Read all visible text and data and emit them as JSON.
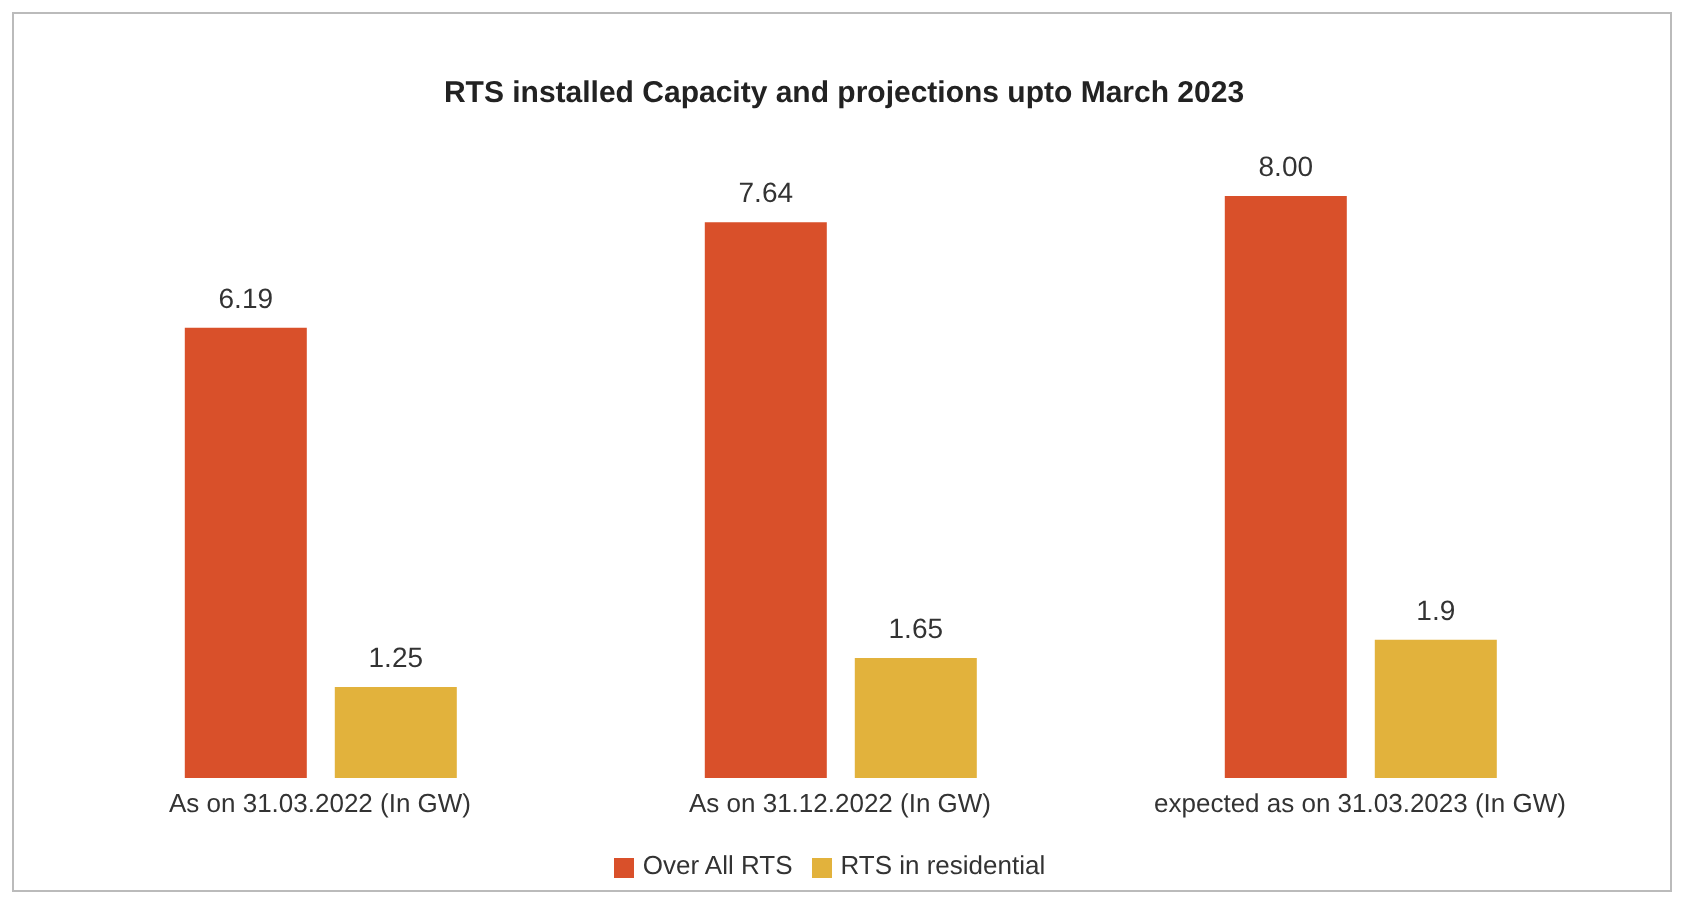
{
  "chart_data": {
    "type": "bar",
    "title": "RTS installed Capacity and projections upto March 2023",
    "categories": [
      "As on 31.03.2022 (In GW)",
      "As on 31.12.2022 (In GW)",
      "expected as on 31.03.2023 (In GW)"
    ],
    "series": [
      {
        "name": "Over All RTS",
        "color": "#d9502a",
        "values": [
          6.19,
          7.64,
          8.0
        ],
        "value_labels": [
          "6.19",
          "7.64",
          "8.00"
        ]
      },
      {
        "name": "RTS in residential",
        "color": "#e2b23c",
        "values": [
          1.25,
          1.65,
          1.9
        ],
        "value_labels": [
          "1.25",
          "1.65",
          "1.9"
        ]
      }
    ],
    "legend": "bottom",
    "grid": false
  }
}
